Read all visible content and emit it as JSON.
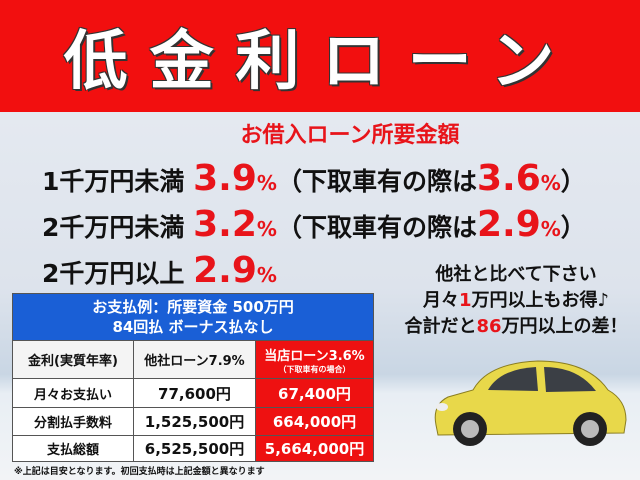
{
  "banner": {
    "title": "低金利ローン"
  },
  "subhead": "お借入ローン所要金額",
  "rates": [
    {
      "label": "1千万円未満",
      "rate": "3.9",
      "pct": "%",
      "paren_open": "（下取車有の際は",
      "trade_rate": "3.6",
      "trade_pct": "%",
      "paren_close": "）"
    },
    {
      "label": "2千万円未満",
      "rate": "3.2",
      "pct": "%",
      "paren_open": "（下取車有の際は",
      "trade_rate": "2.9",
      "trade_pct": "%",
      "paren_close": "）"
    },
    {
      "label": "2千万円以上",
      "rate": "2.9",
      "pct": "%"
    }
  ],
  "table": {
    "title1": "お支払例：所要資金 500万円",
    "title2": "84回払 ボーナス払なし",
    "headers": [
      "金利(実質年率)",
      "他社ローン7.9%",
      "当店ローン3.6%"
    ],
    "header_note": "（下取車有の場合）",
    "rows": [
      [
        "月々お支払い",
        "77,600円",
        "67,400円"
      ],
      [
        "分割払手数料",
        "1,525,500円",
        "664,000円"
      ],
      [
        "支払総額",
        "6,525,500円",
        "5,664,000円"
      ]
    ]
  },
  "note": "※上記は目安となります。初回支払時は上記金額と異なります",
  "side": {
    "line1": "他社と比べて下さい",
    "l2a": "月々",
    "l2b": "1",
    "l2c": "万円以上もお得♪",
    "l3a": "合計だと",
    "l3b": "86",
    "l3c": "万円以上の差！"
  },
  "colors": {
    "red": "#f20f0f",
    "blue": "#1a5fd6",
    "car": "#e8d84a"
  }
}
